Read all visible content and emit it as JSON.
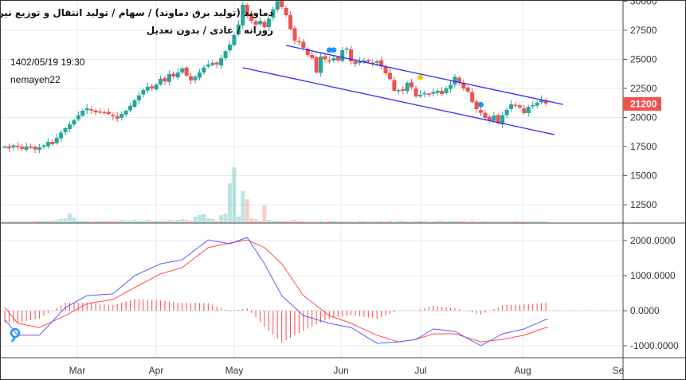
{
  "header": {
    "title_line1": "دماوند (تولید برق دماوند) / سهام / تولید انتقال و توزیع نیروی برق / فرابورس",
    "title_line2": "روزانه / عادی / بدون تعدیل",
    "timestamp": "1402/05/19 19:30",
    "author": "nemayeh22"
  },
  "colors": {
    "up": "#26a69a",
    "down": "#ef5350",
    "channel": "#2b2bff",
    "macd": "#5b5bff",
    "signal": "#ff4a4a",
    "grid": "#e3eaf2",
    "marker_blue": "#1e90ff",
    "marker_yellow": "#f7c800"
  },
  "chart_data": [
    {
      "type": "candlestick",
      "title": "دماوند",
      "ylim": [
        11000,
        30000
      ],
      "price_ticks": [
        "30000",
        "27500",
        "25000",
        "22500",
        "20000",
        "17500",
        "15000",
        "12500"
      ],
      "last_price": "21200",
      "closes": [
        17500,
        17350,
        17600,
        17450,
        17300,
        17500,
        17400,
        17250,
        17450,
        17600,
        17900,
        17700,
        18250,
        18700,
        19080,
        19400,
        19760,
        20200,
        20580,
        20790,
        20600,
        20440,
        20500,
        20440,
        20300,
        20100,
        19900,
        20300,
        20580,
        21000,
        21470,
        21900,
        22360,
        22640,
        22500,
        22840,
        23320,
        23100,
        23730,
        23530,
        23870,
        24210,
        23600,
        23180,
        23500,
        23870,
        24300,
        24550,
        24690,
        24550,
        25100,
        25700,
        26270,
        27090,
        28000,
        29690,
        28800,
        28320,
        27980,
        28300,
        27770,
        28500,
        29300,
        30000,
        29500,
        28800,
        27600,
        26610,
        26470,
        26000,
        25380,
        25100,
        23870,
        25240,
        25000,
        24900,
        25100,
        24900,
        25790,
        25930,
        24830,
        24600,
        24800,
        24900,
        24800,
        24700,
        24830,
        24400,
        23800,
        23300,
        22300,
        22360,
        22300,
        22980,
        22600,
        21810,
        21950,
        22090,
        22000,
        22200,
        22300,
        22020,
        22500,
        22800,
        23500,
        23000,
        22500,
        22230,
        21340,
        20720,
        20400,
        19970,
        19760,
        20170,
        19490,
        20200,
        20650,
        21130,
        21000,
        20860,
        20380,
        20920,
        21060,
        21270,
        21540,
        21200
      ],
      "volume": [
        2,
        2,
        2,
        2,
        2,
        2,
        2,
        3,
        3,
        3,
        3,
        3,
        4,
        5,
        6,
        12,
        7,
        3,
        3,
        3,
        2,
        3,
        3,
        3,
        3,
        3,
        3,
        4,
        3,
        3,
        4,
        3,
        3,
        4,
        3,
        3,
        3,
        3,
        4,
        3,
        4,
        5,
        4,
        3,
        8,
        10,
        11,
        6,
        5,
        3,
        10,
        12,
        50,
        70,
        8,
        40,
        30,
        6,
        5,
        3,
        22,
        4,
        3,
        3,
        3,
        3,
        3,
        4,
        3,
        3,
        2,
        2,
        2,
        3,
        2,
        3,
        3,
        2,
        2,
        2,
        2,
        2,
        3,
        3,
        2,
        2,
        2,
        3,
        2,
        3,
        2,
        3,
        3,
        2,
        2,
        3,
        3,
        3,
        2,
        2,
        3,
        3,
        2,
        3,
        3,
        3,
        3,
        2,
        3,
        2,
        2,
        3,
        2,
        2,
        2,
        2,
        2,
        2,
        3,
        2,
        2,
        2,
        2,
        2,
        2,
        2
      ],
      "channel": {
        "upper": [
          [
            65,
            26200
          ],
          [
            129,
            21120
          ]
        ],
        "lower": [
          [
            55,
            24280
          ],
          [
            127,
            18530
          ]
        ]
      },
      "markers": [
        {
          "index": 75,
          "price": 25800,
          "color": "blue"
        },
        {
          "index": 76,
          "price": 25800,
          "color": "blue"
        },
        {
          "index": 96,
          "price": 23450,
          "color": "yellow"
        },
        {
          "index": 110,
          "price": 21100,
          "color": "blue"
        }
      ]
    },
    {
      "type": "line",
      "title": "MACD",
      "ylim": [
        -1300,
        2500
      ],
      "ticks": [
        "2000.0000",
        "1000.0000",
        "0.0000",
        "-1000.0000"
      ],
      "series": [
        {
          "name": "MACD",
          "points": [
            [
              0,
              -250
            ],
            [
              3,
              -700
            ],
            [
              8,
              -700
            ],
            [
              14,
              90
            ],
            [
              19,
              430
            ],
            [
              25,
              480
            ],
            [
              30,
              1000
            ],
            [
              36,
              1340
            ],
            [
              41,
              1450
            ],
            [
              47,
              2020
            ],
            [
              52,
              1910
            ],
            [
              56,
              2090
            ],
            [
              60,
              1340
            ],
            [
              64,
              430
            ],
            [
              69,
              -140
            ],
            [
              75,
              -360
            ],
            [
              80,
              -480
            ],
            [
              86,
              -930
            ],
            [
              91,
              -890
            ],
            [
              95,
              -820
            ],
            [
              99,
              -520
            ],
            [
              104,
              -590
            ],
            [
              110,
              -1000
            ],
            [
              115,
              -660
            ],
            [
              120,
              -520
            ],
            [
              125,
              -250
            ]
          ]
        },
        {
          "name": "Signal",
          "points": [
            [
              0,
              90
            ],
            [
              3,
              -360
            ],
            [
              8,
              -480
            ],
            [
              14,
              -140
            ],
            [
              19,
              200
            ],
            [
              25,
              320
            ],
            [
              30,
              660
            ],
            [
              36,
              1050
            ],
            [
              41,
              1230
            ],
            [
              47,
              1800
            ],
            [
              52,
              1930
            ],
            [
              56,
              2020
            ],
            [
              60,
              1800
            ],
            [
              64,
              1340
            ],
            [
              69,
              430
            ],
            [
              75,
              -140
            ],
            [
              80,
              -360
            ],
            [
              86,
              -700
            ],
            [
              91,
              -890
            ],
            [
              95,
              -820
            ],
            [
              99,
              -660
            ],
            [
              104,
              -660
            ],
            [
              110,
              -890
            ],
            [
              115,
              -820
            ],
            [
              120,
              -700
            ],
            [
              125,
              -480
            ]
          ]
        }
      ]
    }
  ],
  "time_axis": [
    "Mar",
    "Apr",
    "May",
    "Jun",
    "Jul",
    "Aug",
    "Se"
  ]
}
